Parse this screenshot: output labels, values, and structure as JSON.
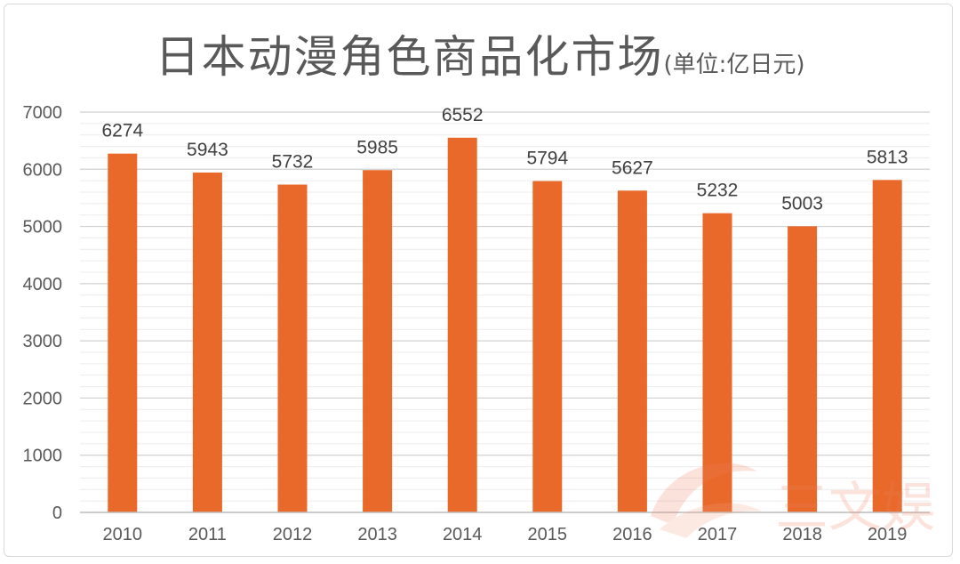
{
  "chart_data": {
    "type": "bar",
    "title": "日本动漫角色商品化市场",
    "subtitle": "(单位:亿日元)",
    "categories": [
      "2010",
      "2011",
      "2012",
      "2013",
      "2014",
      "2015",
      "2016",
      "2017",
      "2018",
      "2019"
    ],
    "values": [
      6274,
      5943,
      5732,
      5985,
      6552,
      5794,
      5627,
      5232,
      5003,
      5813
    ],
    "ylim": [
      0,
      7000
    ],
    "yticks": [
      0,
      1000,
      2000,
      3000,
      4000,
      5000,
      6000,
      7000
    ],
    "xlabel": "",
    "ylabel": "",
    "grid": true,
    "bar_color": "#e8692a",
    "grid_color": "#d9d9d9",
    "data_labels": true
  },
  "watermark": {
    "text": "三文娱",
    "color": "#f08060"
  }
}
